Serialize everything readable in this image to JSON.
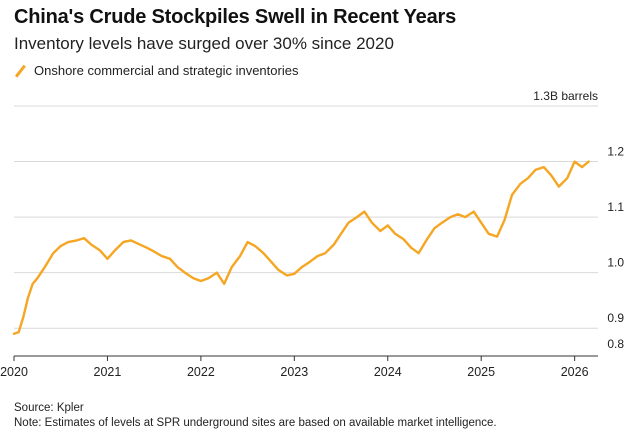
{
  "header": {
    "title": "China's Crude Stockpiles Swell in Recent Years",
    "subtitle": "Inventory levels have surged over 30% since 2020"
  },
  "footer": {
    "source": "Source: Kpler",
    "note": "Note: Estimates of levels at SPR underground sites are based on available market intelligence."
  },
  "colors": {
    "line": "#f5a623",
    "grid": "#d9d9d9",
    "axis": "#333333",
    "text": "#222222"
  },
  "chart_data": {
    "type": "line",
    "title": "China's Crude Stockpiles Swell in Recent Years",
    "subtitle": "Inventory levels have surged over 30% since 2020",
    "xlabel": "",
    "ylabel": "1.3B barrels",
    "unit_label": "1.3B barrels",
    "xlim": [
      2020.0,
      2026.25
    ],
    "ylim": [
      0.85,
      1.3
    ],
    "x_ticks": [
      2020,
      2021,
      2022,
      2023,
      2024,
      2025,
      2026
    ],
    "x_tick_labels": [
      "2020",
      "2021",
      "2022",
      "2023",
      "2024",
      "2025",
      "2026"
    ],
    "y_ticks": [
      0.9,
      1.0,
      1.1,
      1.2
    ],
    "y_tick_labels": [
      "0.9",
      "1.0",
      "1.1",
      "1.2"
    ],
    "grid": true,
    "legend_position": "top-left",
    "series": [
      {
        "name": "Onshore commercial and strategic inventories",
        "x": [
          2020.0,
          2020.05,
          2020.1,
          2020.15,
          2020.2,
          2020.25,
          2020.33,
          2020.42,
          2020.5,
          2020.58,
          2020.67,
          2020.75,
          2020.83,
          2020.92,
          2021.0,
          2021.08,
          2021.17,
          2021.25,
          2021.33,
          2021.42,
          2021.5,
          2021.58,
          2021.67,
          2021.75,
          2021.83,
          2021.92,
          2022.0,
          2022.08,
          2022.17,
          2022.25,
          2022.33,
          2022.42,
          2022.5,
          2022.58,
          2022.67,
          2022.75,
          2022.83,
          2022.92,
          2023.0,
          2023.08,
          2023.17,
          2023.25,
          2023.33,
          2023.42,
          2023.5,
          2023.58,
          2023.67,
          2023.75,
          2023.83,
          2023.92,
          2024.0,
          2024.08,
          2024.17,
          2024.25,
          2024.33,
          2024.42,
          2024.5,
          2024.58,
          2024.67,
          2024.75,
          2024.83,
          2024.92,
          2025.0,
          2025.08,
          2025.17,
          2025.25,
          2025.33,
          2025.42,
          2025.5,
          2025.58,
          2025.67,
          2025.75,
          2025.83,
          2025.92,
          2026.0,
          2026.08,
          2026.15
        ],
        "values": [
          0.89,
          0.893,
          0.92,
          0.955,
          0.98,
          0.99,
          1.01,
          1.035,
          1.048,
          1.055,
          1.058,
          1.062,
          1.05,
          1.04,
          1.025,
          1.04,
          1.055,
          1.058,
          1.052,
          1.045,
          1.038,
          1.03,
          1.025,
          1.01,
          1.0,
          0.99,
          0.985,
          0.99,
          1.0,
          0.98,
          1.01,
          1.03,
          1.055,
          1.048,
          1.035,
          1.02,
          1.005,
          0.995,
          0.998,
          1.01,
          1.02,
          1.03,
          1.035,
          1.05,
          1.07,
          1.09,
          1.1,
          1.11,
          1.09,
          1.075,
          1.085,
          1.07,
          1.06,
          1.045,
          1.035,
          1.06,
          1.08,
          1.09,
          1.1,
          1.105,
          1.1,
          1.11,
          1.09,
          1.07,
          1.065,
          1.095,
          1.14,
          1.16,
          1.17,
          1.185,
          1.19,
          1.175,
          1.155,
          1.17,
          1.2,
          1.19,
          1.2
        ]
      }
    ]
  }
}
